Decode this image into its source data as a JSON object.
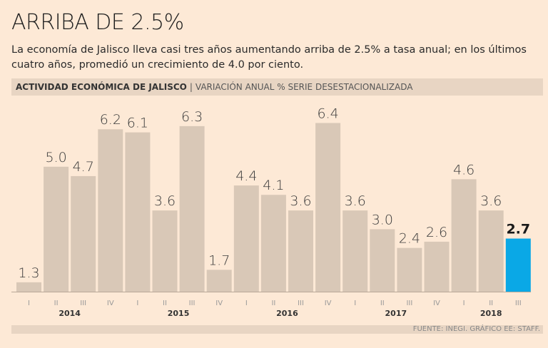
{
  "title": "ARRIBA DE 2.5%",
  "subtitle": "La economía de Jalisco lleva casi tres años aumentando arriba de 2.5% a tasa anual; en los últimos cuatro años, promedió un crecimiento de 4.0 por ciento.",
  "header": {
    "bold": "ACTIVIDAD ECONÓMICA DE JALISCO",
    "separator": "|",
    "light": "VARIACIÓN ANUAL % SERIE DESESTACIONALIZADA"
  },
  "footer": "FUENTE: INEGI. GRÁFICO EE: STAFF.",
  "colors": {
    "bar": "#d9c8b7",
    "highlight": "#0aa8e6",
    "background": "#fde9d6"
  },
  "chart_data": {
    "type": "bar",
    "categories": [
      "I",
      "II",
      "III",
      "IV",
      "I",
      "II",
      "III",
      "IV",
      "I",
      "II",
      "III",
      "IV",
      "I",
      "II",
      "III",
      "IV",
      "I",
      "II",
      "III"
    ],
    "years": [
      {
        "label": "2014",
        "index": 1.5
      },
      {
        "label": "2015",
        "index": 5.5
      },
      {
        "label": "2016",
        "index": 9.5
      },
      {
        "label": "2017",
        "index": 13.5
      },
      {
        "label": "2018",
        "index": 17
      }
    ],
    "values": [
      1.3,
      5.0,
      4.7,
      6.2,
      6.1,
      3.6,
      6.3,
      1.7,
      4.4,
      4.1,
      3.6,
      6.4,
      3.6,
      3.0,
      2.4,
      2.6,
      4.6,
      3.6,
      2.7
    ],
    "labels": [
      "1.3",
      "5.0",
      "4.7",
      "6.2",
      "6.1",
      "3.6",
      "6.3",
      "1.7",
      "4.4",
      "4.1",
      "3.6",
      "6.4",
      "3.6",
      "3.0",
      "2.4",
      "2.6",
      "4.6",
      "3.6",
      "2.7"
    ],
    "highlight_index": 18,
    "ylim": [
      1.0,
      6.5
    ],
    "grid": false
  }
}
